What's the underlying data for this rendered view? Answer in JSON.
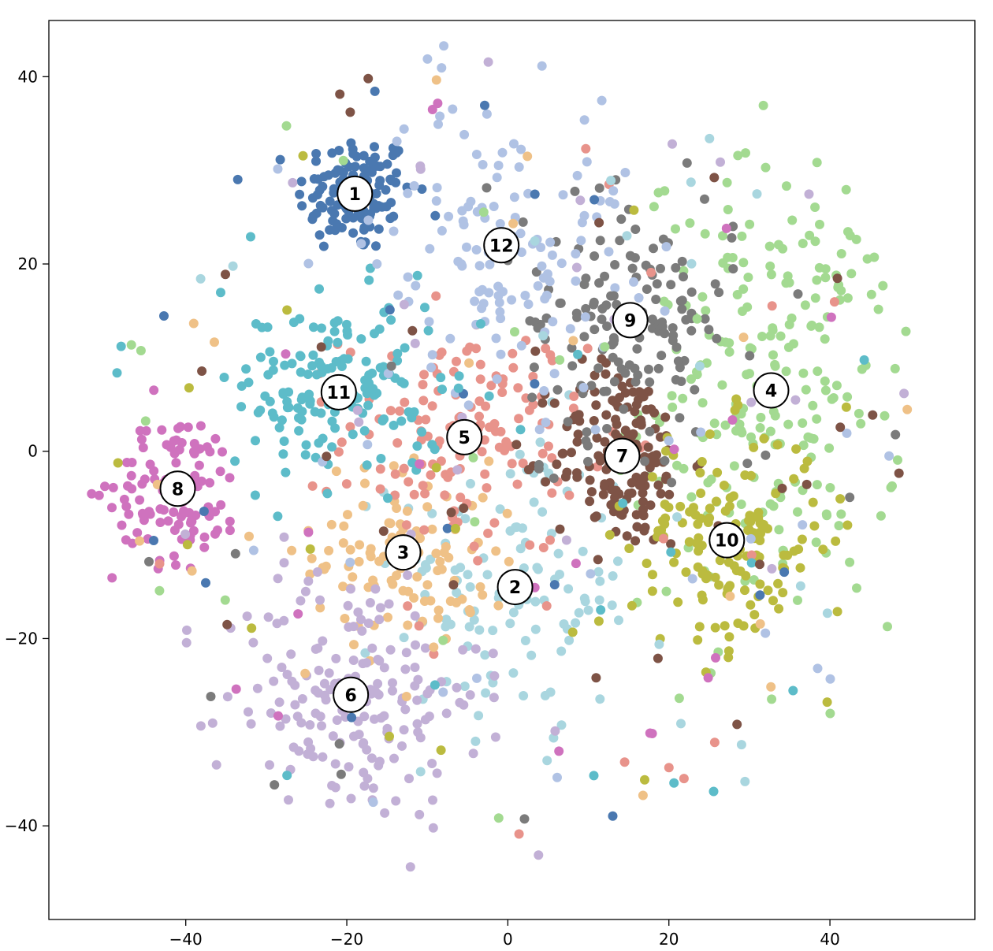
{
  "chart_data": {
    "type": "scatter",
    "title": "",
    "xlabel": "",
    "ylabel": "",
    "xlim": [
      -57,
      58
    ],
    "ylim": [
      -50,
      46
    ],
    "grid": false,
    "legend": "none",
    "x_ticks": [
      {
        "value": -40,
        "label": "−40"
      },
      {
        "value": -20,
        "label": "−20"
      },
      {
        "value": 0,
        "label": "0"
      },
      {
        "value": 20,
        "label": "20"
      },
      {
        "value": 40,
        "label": "40"
      }
    ],
    "y_ticks": [
      {
        "value": 40,
        "label": "40"
      },
      {
        "value": 20,
        "label": "20"
      },
      {
        "value": 0,
        "label": "0"
      },
      {
        "value": -20,
        "label": "−20"
      },
      {
        "value": -40,
        "label": "−40"
      }
    ],
    "clusters": [
      {
        "label": "1",
        "center": [
          -19.0,
          27.5
        ],
        "color": "#4a78b0",
        "spread": [
          3.6,
          3.2
        ],
        "count": 130
      },
      {
        "label": "2",
        "center": [
          0.9,
          -14.5
        ],
        "color": "#a9d6df",
        "spread": [
          7.5,
          8.5
        ],
        "count": 120
      },
      {
        "label": "3",
        "center": [
          -13.0,
          -10.8
        ],
        "color": "#efc187",
        "spread": [
          5.5,
          5.0
        ],
        "count": 105
      },
      {
        "label": "4",
        "center": [
          32.7,
          6.5
        ],
        "color": "#a3da91",
        "spread": [
          8.0,
          12.0
        ],
        "count": 220
      },
      {
        "label": "5",
        "center": [
          -5.4,
          1.5
        ],
        "color": "#e8938b",
        "spread": [
          7.5,
          6.0
        ],
        "count": 140
      },
      {
        "label": "6",
        "center": [
          -19.5,
          -26.0
        ],
        "color": "#c2b0d6",
        "spread": [
          8.0,
          7.0
        ],
        "count": 185
      },
      {
        "label": "7",
        "center": [
          14.2,
          -0.5
        ],
        "color": "#7e5346",
        "spread": [
          4.2,
          5.0
        ],
        "count": 160
      },
      {
        "label": "8",
        "center": [
          -41.0,
          -4.0
        ],
        "color": "#cf72be",
        "spread": [
          4.0,
          4.0
        ],
        "count": 110
      },
      {
        "label": "9",
        "center": [
          15.2,
          14.0
        ],
        "color": "#7b7b7b",
        "spread": [
          6.5,
          6.5
        ],
        "count": 150
      },
      {
        "label": "10",
        "center": [
          27.2,
          -9.5
        ],
        "color": "#bbbb3f",
        "spread": [
          6.0,
          6.0
        ],
        "count": 150
      },
      {
        "label": "11",
        "center": [
          -21.0,
          6.3
        ],
        "color": "#5dbcc9",
        "spread": [
          6.5,
          5.0
        ],
        "count": 155
      },
      {
        "label": "12",
        "center": [
          -0.8,
          22.0
        ],
        "color": "#b0c2e4",
        "spread": [
          8.0,
          8.0
        ],
        "count": 130
      }
    ]
  }
}
